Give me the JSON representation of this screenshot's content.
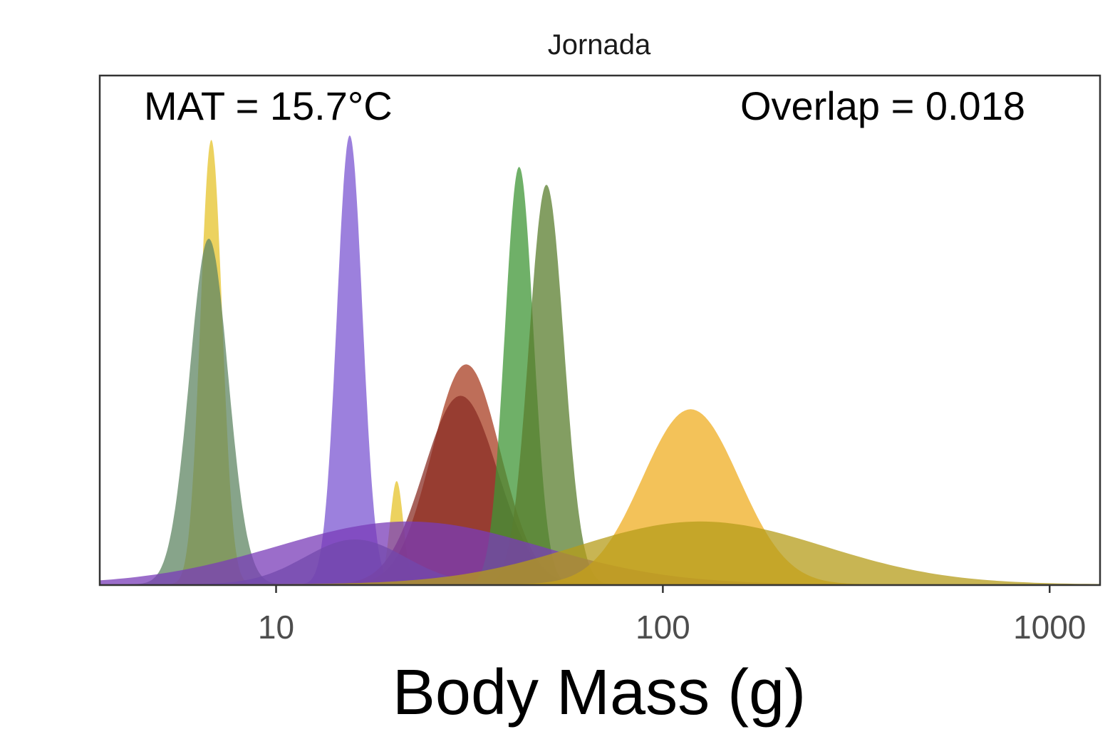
{
  "chart_data": {
    "type": "area",
    "facet_title": "Jornada",
    "annotations": {
      "left": "MAT = 15.7°C",
      "right": "Overlap = 0.018"
    },
    "xlabel": "Body Mass (g)",
    "ylabel": "",
    "x_scale": "log10",
    "xlim": [
      3.5,
      1350
    ],
    "ylim": [
      0,
      1
    ],
    "x_ticks": [
      10,
      100,
      1000
    ],
    "x_tick_labels": [
      "10",
      "100",
      "1000"
    ],
    "y_ticks_shown": false,
    "grid": false,
    "legend": "none",
    "series": [
      {
        "peak_mass": 6.8,
        "height": 0.99,
        "log_sd": 0.028,
        "color": "#e6c32a"
      },
      {
        "peak_mass": 6.7,
        "height": 0.77,
        "log_sd": 0.05,
        "color": "#5f8563"
      },
      {
        "peak_mass": 15.5,
        "height": 1.0,
        "log_sd": 0.033,
        "color": "#7b55d1"
      },
      {
        "peak_mass": 20.5,
        "height": 0.23,
        "log_sd": 0.017,
        "color": "#e6c32a"
      },
      {
        "peak_mass": 31,
        "height": 0.49,
        "log_sd": 0.088,
        "color": "#a83e22"
      },
      {
        "peak_mass": 30,
        "height": 0.42,
        "log_sd": 0.095,
        "color": "#8a2d24"
      },
      {
        "peak_mass": 42.5,
        "height": 0.93,
        "log_sd": 0.037,
        "color": "#3f9635"
      },
      {
        "peak_mass": 50,
        "height": 0.89,
        "log_sd": 0.045,
        "color": "#5a7d2e"
      },
      {
        "peak_mass": 16,
        "height": 0.1,
        "log_sd": 0.13,
        "color": "#5f6e8a"
      },
      {
        "peak_mass": 22,
        "height": 0.14,
        "log_sd": 0.34,
        "color": "#7a3cb8"
      },
      {
        "peak_mass": 118,
        "height": 0.39,
        "log_sd": 0.125,
        "color": "#efae22"
      },
      {
        "peak_mass": 125,
        "height": 0.14,
        "log_sd": 0.32,
        "color": "#b59c1a"
      }
    ]
  }
}
